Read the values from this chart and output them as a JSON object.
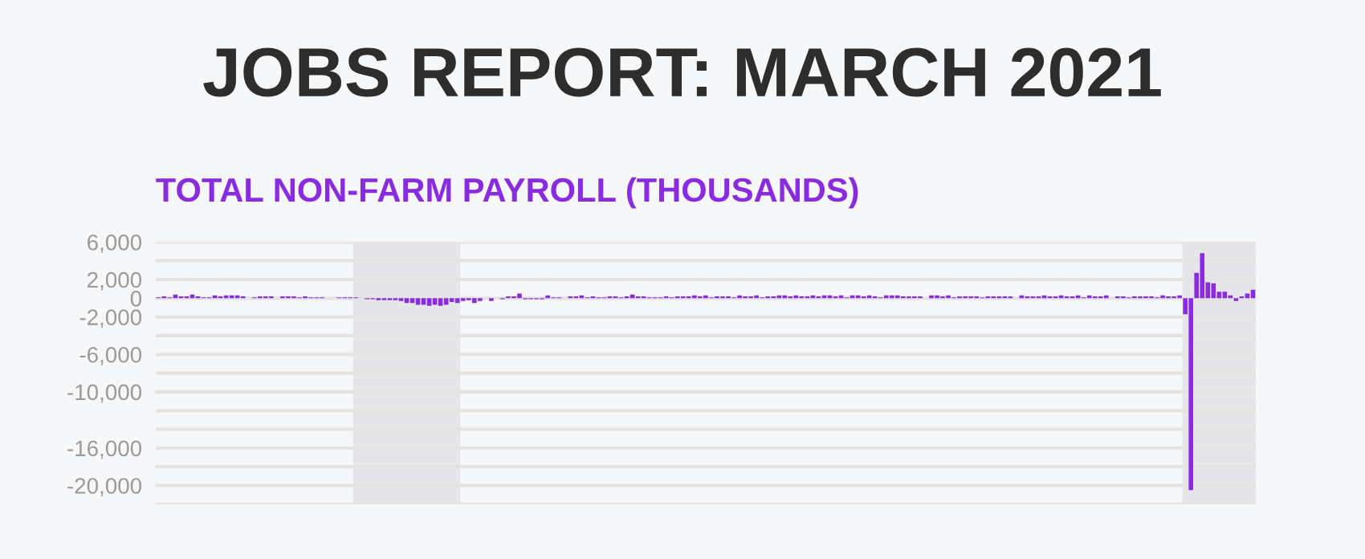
{
  "chart_data": {
    "type": "bar",
    "title": "JOBS REPORT: MARCH 2021",
    "subtitle": "TOTAL NON-FARM PAYROLL (THOUSANDS)",
    "categories": [
      null,
      null,
      null,
      null,
      null,
      null,
      null,
      null,
      null,
      null,
      null,
      null,
      null,
      null,
      null,
      null,
      null,
      null,
      null,
      null,
      null,
      null,
      null,
      null,
      null,
      null,
      null,
      null,
      null,
      null,
      null,
      null,
      null,
      null,
      null,
      null,
      null,
      null,
      null,
      null,
      null,
      null,
      null,
      null,
      null,
      null,
      null,
      null,
      null,
      null,
      null,
      null,
      null,
      null,
      null,
      null,
      null,
      null,
      null,
      null,
      null,
      null,
      null,
      null,
      null,
      null,
      null,
      null,
      null,
      null,
      null,
      null,
      null,
      null,
      null,
      null,
      null,
      null,
      null,
      null,
      null,
      null,
      null,
      null,
      null,
      null,
      null,
      null,
      null,
      null,
      null,
      null,
      null,
      null,
      null,
      null,
      null,
      null,
      null,
      null,
      null,
      null,
      null,
      null,
      null,
      null,
      null,
      null,
      null,
      null,
      null,
      null,
      null,
      null,
      null,
      null,
      null,
      null,
      null,
      null,
      null,
      null,
      null,
      null,
      null,
      null,
      null,
      null,
      null,
      null,
      null,
      null,
      null,
      null,
      null,
      null,
      null,
      null,
      null,
      null,
      null,
      null,
      null,
      null,
      null,
      null,
      null,
      null,
      null,
      null,
      null,
      null,
      null,
      null,
      null,
      null,
      null,
      null,
      null,
      null,
      null,
      null,
      null,
      null,
      null,
      null,
      null,
      null,
      null,
      null,
      null,
      null,
      null,
      null,
      null,
      null,
      null,
      null,
      null,
      null,
      null,
      null,
      null,
      null,
      null,
      null,
      null,
      null,
      null,
      null,
      null,
      null,
      null,
      null,
      null
    ],
    "values": [
      100,
      200,
      100,
      400,
      200,
      200,
      400,
      200,
      100,
      100,
      300,
      200,
      300,
      300,
      300,
      200,
      0,
      100,
      200,
      200,
      200,
      0,
      200,
      200,
      200,
      100,
      200,
      100,
      100,
      100,
      0,
      0,
      100,
      100,
      100,
      100,
      0,
      -100,
      -100,
      -200,
      -200,
      -200,
      -200,
      -300,
      -500,
      -500,
      -700,
      -700,
      -800,
      -700,
      -800,
      -700,
      -400,
      -500,
      -300,
      -200,
      -500,
      -300,
      0,
      -300,
      0,
      -100,
      200,
      200,
      500,
      -100,
      -100,
      -100,
      -100,
      300,
      100,
      100,
      0,
      200,
      200,
      300,
      100,
      200,
      100,
      100,
      200,
      200,
      100,
      200,
      400,
      200,
      200,
      100,
      100,
      100,
      200,
      100,
      200,
      200,
      200,
      300,
      200,
      300,
      100,
      200,
      200,
      200,
      100,
      300,
      200,
      200,
      300,
      100,
      200,
      200,
      300,
      300,
      200,
      300,
      200,
      200,
      300,
      200,
      300,
      300,
      200,
      300,
      100,
      300,
      300,
      200,
      300,
      200,
      100,
      300,
      300,
      300,
      200,
      200,
      200,
      200,
      0,
      300,
      300,
      200,
      300,
      100,
      200,
      200,
      200,
      200,
      100,
      200,
      200,
      200,
      200,
      200,
      0,
      300,
      200,
      200,
      200,
      300,
      200,
      200,
      300,
      200,
      200,
      300,
      100,
      300,
      200,
      200,
      300,
      0,
      200,
      200,
      100,
      200,
      200,
      200,
      200,
      100,
      300,
      200,
      200,
      300,
      -1700,
      -20500,
      2700,
      4800,
      1700,
      1600,
      700,
      700,
      300,
      -300,
      200,
      500,
      900
    ],
    "color": "#8a2be2",
    "ylim": [
      -22000,
      6000
    ],
    "yticks": [
      {
        "value": 6000,
        "label": "6,000"
      },
      {
        "value": 4000,
        "label": null
      },
      {
        "value": 2000,
        "label": "2,000"
      },
      {
        "value": 0,
        "label": "0"
      },
      {
        "value": -2000,
        "label": "-2,000"
      },
      {
        "value": -4000,
        "label": null
      },
      {
        "value": -6000,
        "label": "-6,000"
      },
      {
        "value": -8000,
        "label": null
      },
      {
        "value": -10000,
        "label": "-10,000"
      },
      {
        "value": -12000,
        "label": null
      },
      {
        "value": -14000,
        "label": null
      },
      {
        "value": -16000,
        "label": "-16,000"
      },
      {
        "value": -18000,
        "label": null
      },
      {
        "value": -20000,
        "label": "-20,000"
      },
      {
        "value": -22000,
        "label": null
      }
    ],
    "grid": "y",
    "tick_labels": "y"
  }
}
